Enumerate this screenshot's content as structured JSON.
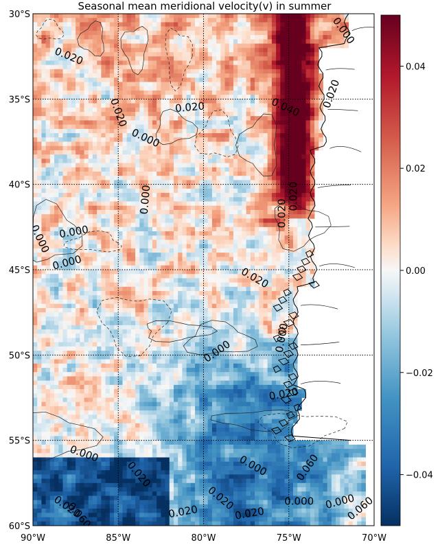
{
  "title": "Seasonal mean meridional velocity(v) in summer",
  "map": {
    "projection": "PlateCarree",
    "lon_range": [
      -90,
      -70
    ],
    "lat_range": [
      -60,
      -30
    ],
    "lon_ticks": [
      {
        "lon": -90,
        "label": "90°W"
      },
      {
        "lon": -85,
        "label": "85°W"
      },
      {
        "lon": -80,
        "label": "80°W"
      },
      {
        "lon": -75,
        "label": "75°W"
      },
      {
        "lon": -70,
        "label": "70°W"
      }
    ],
    "lat_ticks": [
      {
        "lat": -30,
        "label": "30°S"
      },
      {
        "lat": -35,
        "label": "35°S"
      },
      {
        "lat": -40,
        "label": "40°S"
      },
      {
        "lat": -45,
        "label": "45°S"
      },
      {
        "lat": -50,
        "label": "50°S"
      },
      {
        "lat": -55,
        "label": "55°S"
      },
      {
        "lat": -60,
        "label": "60°S"
      }
    ],
    "gridlines": "dotted",
    "colormap": "RdBu_r",
    "color_range": [
      -0.05,
      0.05
    ],
    "colors": {
      "negative": "#0a3a75",
      "zero": "#f7f7f7",
      "positive": "#7a0016",
      "land": "#ffffff",
      "coast": "#000000"
    }
  },
  "colorbar": {
    "ticks": [
      {
        "value": 0.04,
        "label": "0.04"
      },
      {
        "value": 0.02,
        "label": "0.02"
      },
      {
        "value": 0.0,
        "label": "0.00"
      },
      {
        "value": -0.02,
        "label": "−0.02"
      },
      {
        "value": -0.04,
        "label": "−0.04"
      }
    ]
  },
  "contour_labels": [
    {
      "text": "0.020",
      "lon": -87.9,
      "lat": -32.5,
      "rot": 22
    },
    {
      "text": "0.000",
      "lon": -71.8,
      "lat": -31.0,
      "rot": 55
    },
    {
      "text": "0.020",
      "lon": -72.5,
      "lat": -34.7,
      "rot": -70
    },
    {
      "text": "0.040",
      "lon": -75.2,
      "lat": -35.5,
      "rot": 25
    },
    {
      "text": "0.020",
      "lon": -85.0,
      "lat": -35.8,
      "rot": 70
    },
    {
      "text": "0.020",
      "lon": -80.8,
      "lat": -35.5,
      "rot": -5
    },
    {
      "text": "0.000",
      "lon": -83.4,
      "lat": -37.3,
      "rot": 25
    },
    {
      "text": "0.000",
      "lon": -83.4,
      "lat": -40.9,
      "rot": -85
    },
    {
      "text": "0.020",
      "lon": -74.7,
      "lat": -40.7,
      "rot": -90
    },
    {
      "text": "0.020",
      "lon": -75.4,
      "lat": -41.7,
      "rot": -90
    },
    {
      "text": "0.000",
      "lon": -87.6,
      "lat": -42.8,
      "rot": -10
    },
    {
      "text": "0.000",
      "lon": -89.6,
      "lat": -43.2,
      "rot": 65
    },
    {
      "text": "0.000",
      "lon": -88.0,
      "lat": -44.6,
      "rot": -15
    },
    {
      "text": "0.020",
      "lon": -77.0,
      "lat": -45.5,
      "rot": 30
    },
    {
      "text": "0.000",
      "lon": -75.4,
      "lat": -49.0,
      "rot": -80
    },
    {
      "text": "0.000",
      "lon": -79.2,
      "lat": -49.8,
      "rot": -35
    },
    {
      "text": "0.020",
      "lon": -75.3,
      "lat": -52.3,
      "rot": -10
    },
    {
      "text": "0.000",
      "lon": -87.0,
      "lat": -55.8,
      "rot": 20
    },
    {
      "text": "0.020",
      "lon": -83.8,
      "lat": -57.0,
      "rot": 50
    },
    {
      "text": "0.000",
      "lon": -77.1,
      "lat": -56.5,
      "rot": 30
    },
    {
      "text": "0.020",
      "lon": -79.0,
      "lat": -58.4,
      "rot": 40
    },
    {
      "text": "0.000",
      "lon": -74.4,
      "lat": -58.6,
      "rot": 0
    },
    {
      "text": "0.060",
      "lon": -73.9,
      "lat": -56.6,
      "rot": -55
    },
    {
      "text": "0.020",
      "lon": -81.2,
      "lat": -59.2,
      "rot": -10
    },
    {
      "text": "0.020",
      "lon": -77.3,
      "lat": -59.3,
      "rot": -10
    },
    {
      "text": "0.000",
      "lon": -72.0,
      "lat": -58.6,
      "rot": -15
    },
    {
      "text": "0.020",
      "lon": -88.0,
      "lat": -58.9,
      "rot": 35
    },
    {
      "text": "0.060",
      "lon": -87.3,
      "lat": -59.4,
      "rot": 50
    },
    {
      "text": "0.060",
      "lon": -70.8,
      "lat": -59.0,
      "rot": -40
    }
  ]
}
